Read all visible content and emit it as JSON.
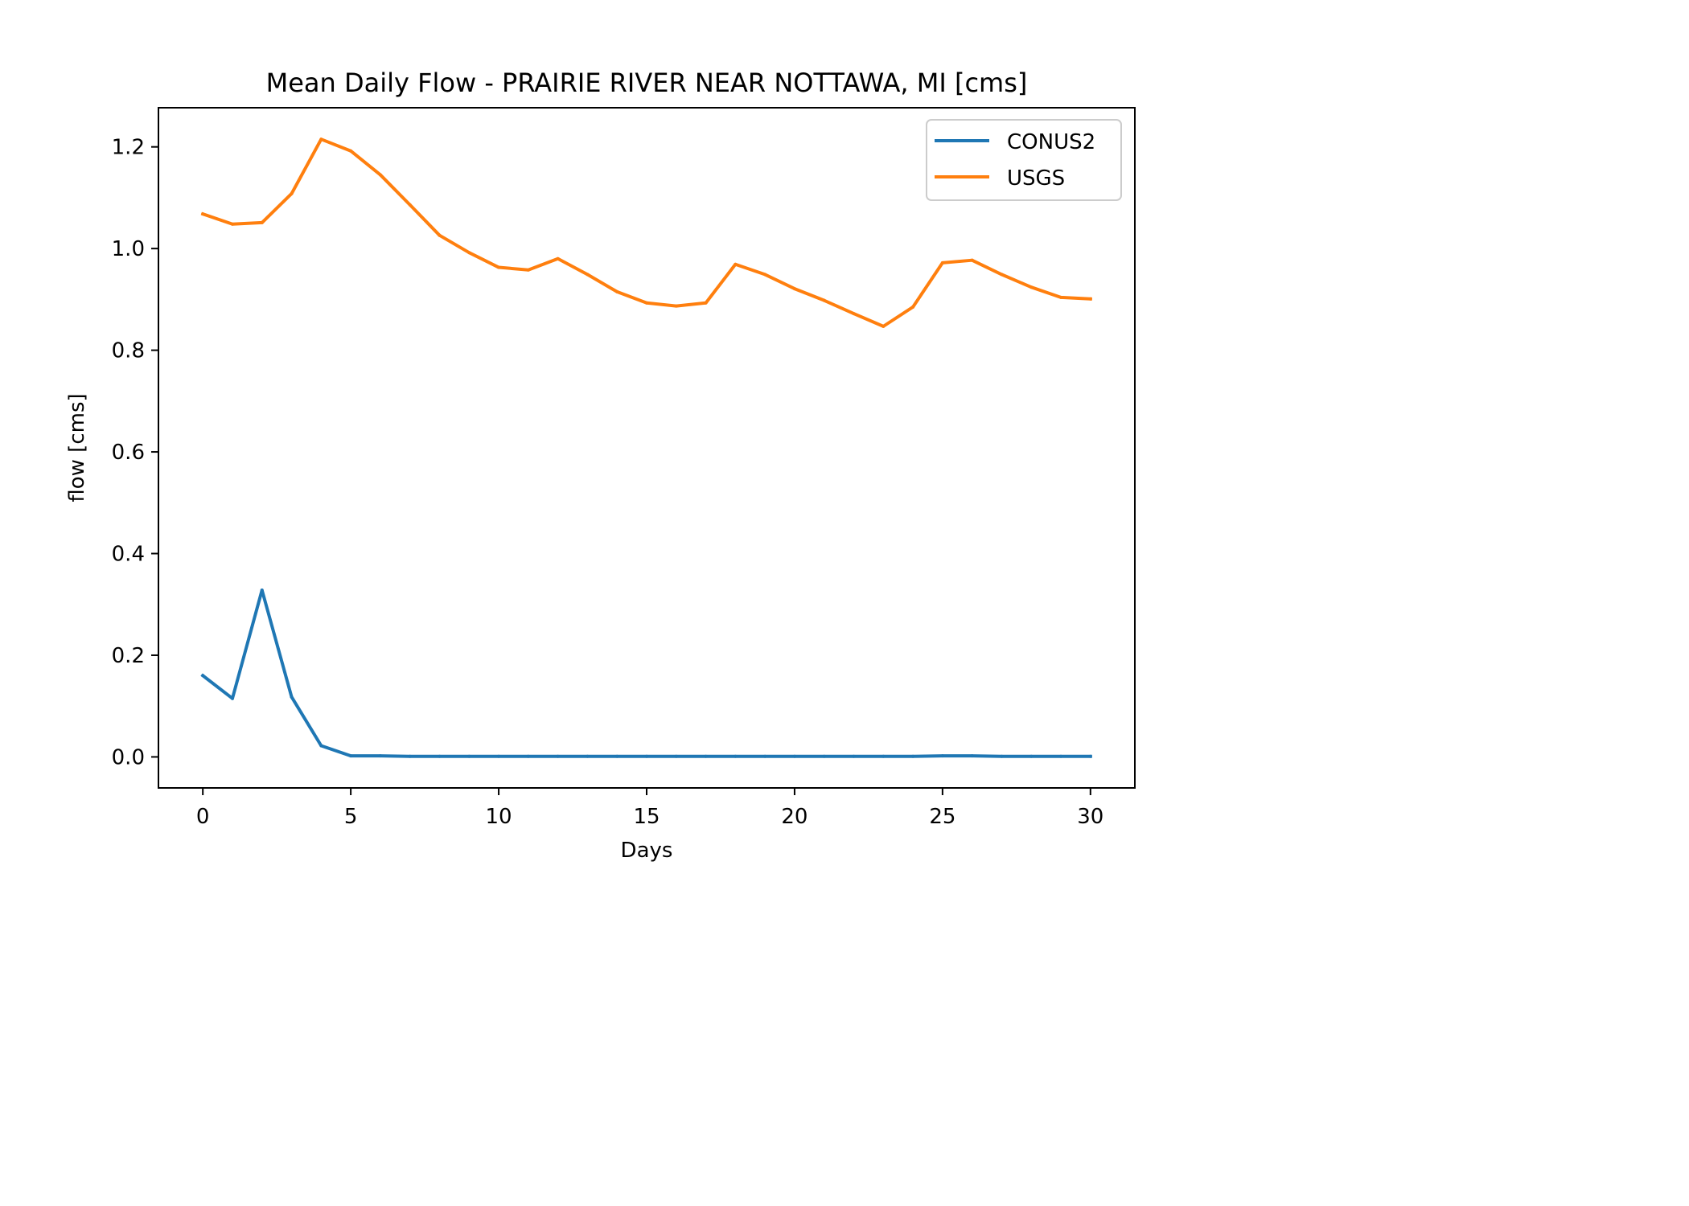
{
  "chart_data": {
    "type": "line",
    "title": "Mean Daily Flow - PRAIRIE RIVER NEAR NOTTAWA, MI [cms]",
    "xlabel": "Days",
    "ylabel": "flow [cms]",
    "xlim": [
      -1.5,
      31.5
    ],
    "ylim": [
      -0.061,
      1.277
    ],
    "xticks": [
      0,
      5,
      10,
      15,
      20,
      25,
      30
    ],
    "xtick_labels": [
      "0",
      "5",
      "10",
      "15",
      "20",
      "25",
      "30"
    ],
    "yticks": [
      0.0,
      0.2,
      0.4,
      0.6,
      0.8,
      1.0,
      1.2
    ],
    "ytick_labels": [
      "0.0",
      "0.2",
      "0.4",
      "0.6",
      "0.8",
      "1.0",
      "1.2"
    ],
    "grid": false,
    "legend_position": "top-right",
    "x": [
      0,
      1,
      2,
      3,
      4,
      5,
      6,
      7,
      8,
      9,
      10,
      11,
      12,
      13,
      14,
      15,
      16,
      17,
      18,
      19,
      20,
      21,
      22,
      23,
      24,
      25,
      26,
      27,
      28,
      29,
      30
    ],
    "series": [
      {
        "name": "CONUS2",
        "color": "#1f77b4",
        "values": [
          0.16,
          0.115,
          0.328,
          0.118,
          0.022,
          0.002,
          0.002,
          0.001,
          0.001,
          0.001,
          0.001,
          0.001,
          0.001,
          0.001,
          0.001,
          0.001,
          0.001,
          0.001,
          0.001,
          0.001,
          0.001,
          0.001,
          0.001,
          0.001,
          0.001,
          0.002,
          0.002,
          0.001,
          0.001,
          0.001,
          0.001
        ]
      },
      {
        "name": "USGS",
        "color": "#ff7f0e",
        "values": [
          1.068,
          1.048,
          1.051,
          1.108,
          1.215,
          1.192,
          1.145,
          1.086,
          1.026,
          0.992,
          0.963,
          0.958,
          0.98,
          0.949,
          0.915,
          0.893,
          0.887,
          0.893,
          0.969,
          0.949,
          0.921,
          0.898,
          0.872,
          0.847,
          0.885,
          0.972,
          0.977,
          0.949,
          0.924,
          0.904,
          0.901
        ]
      }
    ]
  }
}
